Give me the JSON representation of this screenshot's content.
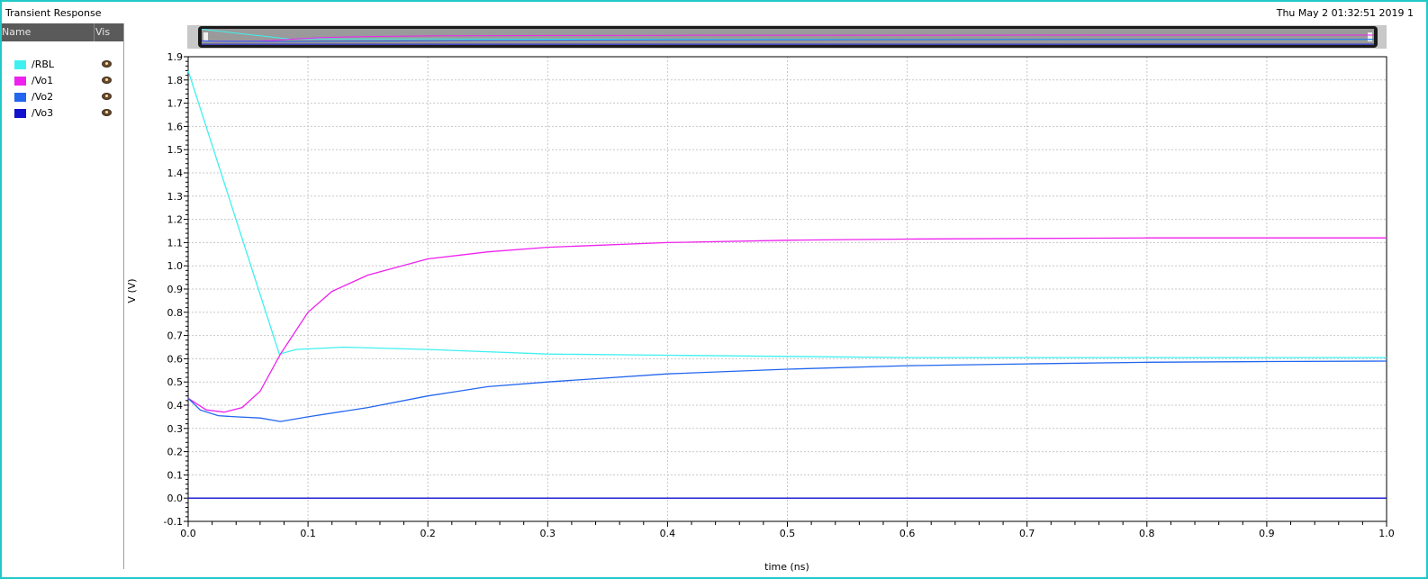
{
  "window": {
    "title": "Transient Response",
    "date": "Thu May 2 01:32:51 2019  1"
  },
  "legend": {
    "header_name": "Name",
    "header_vis": "Vis",
    "items": [
      {
        "label": "/RBL",
        "color": "#40f0f0",
        "icon": "eye-icon"
      },
      {
        "label": "/Vo1",
        "color": "#ee22ee",
        "icon": "eye-icon"
      },
      {
        "label": "/Vo2",
        "color": "#2266ee",
        "icon": "eye-icon"
      },
      {
        "label": "/Vo3",
        "color": "#1111cc",
        "icon": "eye-icon"
      }
    ]
  },
  "chart_data": {
    "type": "line",
    "title": "",
    "xlabel": "time (ns)",
    "ylabel": "V (V)",
    "xlim": [
      0.0,
      1.0
    ],
    "ylim": [
      -0.1,
      1.9
    ],
    "xticks": [
      "0.0",
      "0.1",
      "0.2",
      "0.3",
      "0.4",
      "0.5",
      "0.6",
      "0.7",
      "0.8",
      "0.9",
      "1.0"
    ],
    "yticks": [
      "-0.1",
      "0.0",
      "0.1",
      "0.2",
      "0.3",
      "0.4",
      "0.5",
      "0.6",
      "0.7",
      "0.8",
      "0.9",
      "1.0",
      "1.1",
      "1.2",
      "1.3",
      "1.4",
      "1.5",
      "1.6",
      "1.7",
      "1.8",
      "1.9"
    ],
    "grid": true,
    "series": [
      {
        "name": "/RBL",
        "color": "#40f0f0",
        "x": [
          0.0,
          0.076,
          0.09,
          0.13,
          0.2,
          0.3,
          0.4,
          0.5,
          0.6,
          0.7,
          0.8,
          0.9,
          1.0
        ],
        "y": [
          1.84,
          0.62,
          0.64,
          0.65,
          0.64,
          0.62,
          0.615,
          0.61,
          0.605,
          0.605,
          0.605,
          0.605,
          0.605
        ]
      },
      {
        "name": "/Vo1",
        "color": "#ee22ee",
        "x": [
          0.0,
          0.015,
          0.03,
          0.045,
          0.06,
          0.077,
          0.1,
          0.12,
          0.15,
          0.2,
          0.25,
          0.3,
          0.4,
          0.5,
          0.6,
          0.7,
          0.8,
          0.9,
          1.0
        ],
        "y": [
          0.43,
          0.38,
          0.37,
          0.39,
          0.46,
          0.62,
          0.8,
          0.89,
          0.96,
          1.03,
          1.06,
          1.08,
          1.1,
          1.11,
          1.115,
          1.118,
          1.12,
          1.12,
          1.12
        ]
      },
      {
        "name": "/Vo2",
        "color": "#2266ee",
        "x": [
          0.0,
          0.01,
          0.025,
          0.04,
          0.06,
          0.077,
          0.1,
          0.15,
          0.2,
          0.25,
          0.3,
          0.4,
          0.5,
          0.6,
          0.7,
          0.8,
          0.9,
          1.0
        ],
        "y": [
          0.43,
          0.38,
          0.355,
          0.35,
          0.345,
          0.33,
          0.35,
          0.39,
          0.44,
          0.48,
          0.5,
          0.535,
          0.555,
          0.57,
          0.578,
          0.585,
          0.588,
          0.59
        ]
      },
      {
        "name": "/Vo3",
        "color": "#1111cc",
        "x": [
          0.0,
          0.25,
          0.5,
          0.75,
          1.0
        ],
        "y": [
          0.0,
          0.0,
          0.0,
          0.0,
          0.0
        ]
      }
    ]
  }
}
